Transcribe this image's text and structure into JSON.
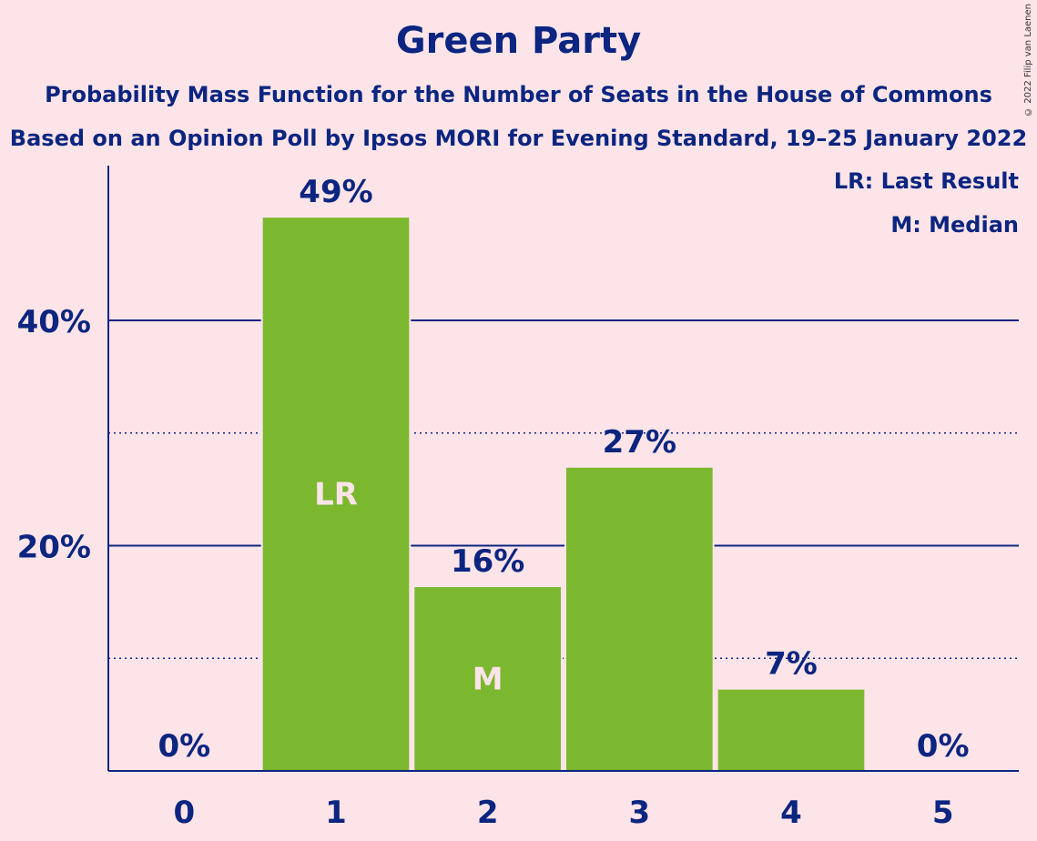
{
  "copyright": "© 2022 Filip van Laenen",
  "legend": {
    "last_result": "LR: Last Result",
    "median": "M: Median"
  },
  "colors": {
    "background": "#fde4e8",
    "bar": "#7cb82f",
    "text": "#0b2580",
    "bar_label": "#fde4e8"
  },
  "chart_data": {
    "type": "bar",
    "title": "Green Party",
    "subtitle": "Probability Mass Function for the Number of Seats in the House of Commons",
    "subtitle2": "Based on an Opinion Poll by Ipsos MORI for Evening Standard, 19–25 January 2022",
    "categories": [
      "0",
      "1",
      "2",
      "3",
      "4",
      "5"
    ],
    "values": [
      0,
      49.2,
      16.4,
      27.0,
      7.3,
      0
    ],
    "value_labels": [
      "0%",
      "49%",
      "16%",
      "27%",
      "7%",
      "0%"
    ],
    "bar_markers": [
      "",
      "LR",
      "M",
      "",
      "",
      ""
    ],
    "yticks": [
      20,
      40
    ],
    "ytick_labels": [
      "20%",
      "40%"
    ],
    "minor_gridlines": [
      10,
      30
    ],
    "ylim": [
      0,
      54
    ],
    "grid": true,
    "legend_position": "top-right"
  }
}
